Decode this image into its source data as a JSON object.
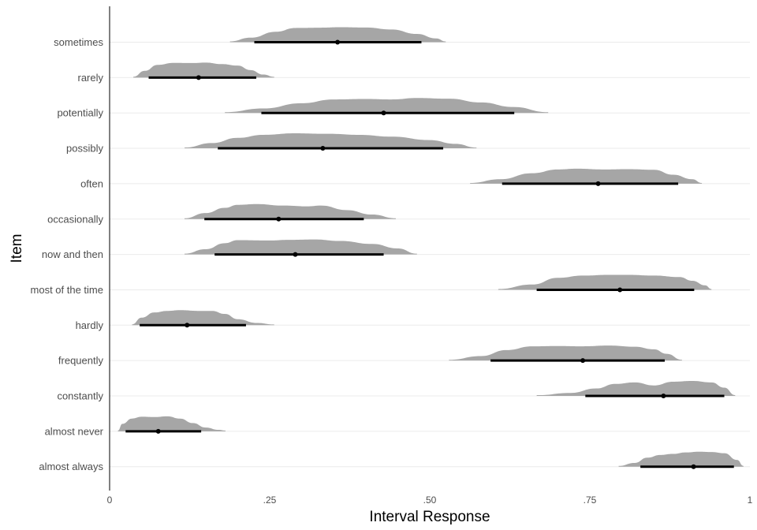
{
  "chart_data": {
    "type": "halfeye",
    "xlabel": "Interval Response",
    "ylabel": "Item",
    "xlim": [
      0,
      1
    ],
    "x_ticks": [
      "0",
      ".25",
      ".50",
      ".75",
      "1"
    ],
    "x_tick_values": [
      0,
      0.25,
      0.5,
      0.75,
      1
    ],
    "grid": "horizontal",
    "colors": {
      "density": "#a6a6a6",
      "interval": "#000000",
      "point": "#000000",
      "grid": "#ebebeb",
      "axis": "#000000"
    },
    "items": [
      {
        "label": "sometimes",
        "point": 0.356,
        "interval": [
          0.226,
          0.487
        ],
        "range": [
          0.188,
          0.525
        ],
        "density": [
          [
            0.188,
            0.05
          ],
          [
            0.22,
            0.3
          ],
          [
            0.26,
            0.7
          ],
          [
            0.29,
            0.95
          ],
          [
            0.33,
            0.97
          ],
          [
            0.36,
            1.0
          ],
          [
            0.4,
            0.98
          ],
          [
            0.44,
            0.85
          ],
          [
            0.48,
            0.55
          ],
          [
            0.51,
            0.25
          ],
          [
            0.525,
            0.05
          ]
        ]
      },
      {
        "label": "rarely",
        "point": 0.139,
        "interval": [
          0.061,
          0.229
        ],
        "range": [
          0.037,
          0.257
        ],
        "density": [
          [
            0.037,
            0.05
          ],
          [
            0.055,
            0.45
          ],
          [
            0.075,
            0.85
          ],
          [
            0.1,
            0.98
          ],
          [
            0.13,
            0.97
          ],
          [
            0.15,
            1.0
          ],
          [
            0.175,
            0.9
          ],
          [
            0.2,
            0.8
          ],
          [
            0.22,
            0.5
          ],
          [
            0.24,
            0.2
          ],
          [
            0.257,
            0.05
          ]
        ]
      },
      {
        "label": "potentially",
        "point": 0.428,
        "interval": [
          0.237,
          0.632
        ],
        "range": [
          0.18,
          0.685
        ],
        "density": [
          [
            0.18,
            0.05
          ],
          [
            0.24,
            0.3
          ],
          [
            0.3,
            0.65
          ],
          [
            0.35,
            0.9
          ],
          [
            0.4,
            0.93
          ],
          [
            0.44,
            0.9
          ],
          [
            0.48,
            1.0
          ],
          [
            0.53,
            0.95
          ],
          [
            0.58,
            0.7
          ],
          [
            0.63,
            0.4
          ],
          [
            0.685,
            0.05
          ]
        ]
      },
      {
        "label": "possibly",
        "point": 0.333,
        "interval": [
          0.169,
          0.521
        ],
        "range": [
          0.117,
          0.573
        ],
        "density": [
          [
            0.117,
            0.05
          ],
          [
            0.16,
            0.35
          ],
          [
            0.2,
            0.7
          ],
          [
            0.24,
            0.9
          ],
          [
            0.29,
            1.0
          ],
          [
            0.34,
            0.97
          ],
          [
            0.39,
            0.9
          ],
          [
            0.44,
            0.78
          ],
          [
            0.5,
            0.55
          ],
          [
            0.54,
            0.3
          ],
          [
            0.573,
            0.05
          ]
        ]
      },
      {
        "label": "often",
        "point": 0.763,
        "interval": [
          0.613,
          0.888
        ],
        "range": [
          0.563,
          0.925
        ],
        "density": [
          [
            0.563,
            0.05
          ],
          [
            0.61,
            0.3
          ],
          [
            0.66,
            0.7
          ],
          [
            0.7,
            0.95
          ],
          [
            0.73,
            1.0
          ],
          [
            0.77,
            0.95
          ],
          [
            0.81,
            0.97
          ],
          [
            0.85,
            0.93
          ],
          [
            0.88,
            0.6
          ],
          [
            0.91,
            0.3
          ],
          [
            0.925,
            0.05
          ]
        ]
      },
      {
        "label": "occasionally",
        "point": 0.264,
        "interval": [
          0.148,
          0.397
        ],
        "range": [
          0.117,
          0.447
        ],
        "density": [
          [
            0.117,
            0.05
          ],
          [
            0.15,
            0.4
          ],
          [
            0.18,
            0.75
          ],
          [
            0.2,
            0.95
          ],
          [
            0.23,
            1.0
          ],
          [
            0.27,
            0.9
          ],
          [
            0.31,
            0.85
          ],
          [
            0.33,
            0.9
          ],
          [
            0.37,
            0.6
          ],
          [
            0.41,
            0.3
          ],
          [
            0.447,
            0.05
          ]
        ]
      },
      {
        "label": "now and then",
        "point": 0.29,
        "interval": [
          0.164,
          0.428
        ],
        "range": [
          0.117,
          0.48
        ],
        "density": [
          [
            0.117,
            0.05
          ],
          [
            0.15,
            0.35
          ],
          [
            0.18,
            0.75
          ],
          [
            0.2,
            0.95
          ],
          [
            0.25,
            0.93
          ],
          [
            0.28,
            0.97
          ],
          [
            0.32,
            1.0
          ],
          [
            0.36,
            0.9
          ],
          [
            0.41,
            0.7
          ],
          [
            0.45,
            0.4
          ],
          [
            0.48,
            0.05
          ]
        ]
      },
      {
        "label": "most of the time",
        "point": 0.797,
        "interval": [
          0.667,
          0.913
        ],
        "range": [
          0.607,
          0.94
        ],
        "density": [
          [
            0.607,
            0.05
          ],
          [
            0.66,
            0.35
          ],
          [
            0.7,
            0.8
          ],
          [
            0.74,
            0.95
          ],
          [
            0.78,
            1.0
          ],
          [
            0.81,
            1.0
          ],
          [
            0.85,
            0.95
          ],
          [
            0.89,
            0.85
          ],
          [
            0.91,
            0.6
          ],
          [
            0.93,
            0.3
          ],
          [
            0.94,
            0.05
          ]
        ]
      },
      {
        "label": "hardly",
        "point": 0.121,
        "interval": [
          0.047,
          0.213
        ],
        "range": [
          0.035,
          0.257
        ],
        "density": [
          [
            0.035,
            0.05
          ],
          [
            0.05,
            0.5
          ],
          [
            0.07,
            0.85
          ],
          [
            0.09,
            0.95
          ],
          [
            0.11,
            1.0
          ],
          [
            0.14,
            0.95
          ],
          [
            0.16,
            0.95
          ],
          [
            0.18,
            0.75
          ],
          [
            0.2,
            0.4
          ],
          [
            0.23,
            0.15
          ],
          [
            0.257,
            0.05
          ]
        ]
      },
      {
        "label": "frequently",
        "point": 0.739,
        "interval": [
          0.595,
          0.867
        ],
        "range": [
          0.53,
          0.894
        ],
        "density": [
          [
            0.53,
            0.05
          ],
          [
            0.58,
            0.3
          ],
          [
            0.62,
            0.7
          ],
          [
            0.66,
            0.95
          ],
          [
            0.7,
            0.97
          ],
          [
            0.74,
            0.95
          ],
          [
            0.78,
            1.0
          ],
          [
            0.82,
            0.92
          ],
          [
            0.85,
            0.75
          ],
          [
            0.87,
            0.45
          ],
          [
            0.894,
            0.05
          ]
        ]
      },
      {
        "label": "constantly",
        "point": 0.865,
        "interval": [
          0.743,
          0.96
        ],
        "range": [
          0.667,
          0.977
        ],
        "density": [
          [
            0.667,
            0.05
          ],
          [
            0.72,
            0.2
          ],
          [
            0.76,
            0.5
          ],
          [
            0.79,
            0.8
          ],
          [
            0.82,
            0.9
          ],
          [
            0.85,
            0.7
          ],
          [
            0.88,
            0.95
          ],
          [
            0.91,
            1.0
          ],
          [
            0.94,
            0.9
          ],
          [
            0.96,
            0.55
          ],
          [
            0.977,
            0.05
          ]
        ]
      },
      {
        "label": "almost never",
        "point": 0.076,
        "interval": [
          0.025,
          0.143
        ],
        "range": [
          0.013,
          0.181
        ],
        "density": [
          [
            0.013,
            0.05
          ],
          [
            0.02,
            0.5
          ],
          [
            0.035,
            0.85
          ],
          [
            0.05,
            0.97
          ],
          [
            0.07,
            0.95
          ],
          [
            0.09,
            1.0
          ],
          [
            0.11,
            0.85
          ],
          [
            0.13,
            0.55
          ],
          [
            0.15,
            0.25
          ],
          [
            0.17,
            0.1
          ],
          [
            0.181,
            0.05
          ]
        ]
      },
      {
        "label": "almost always",
        "point": 0.912,
        "interval": [
          0.829,
          0.975
        ],
        "range": [
          0.795,
          0.99
        ],
        "density": [
          [
            0.795,
            0.05
          ],
          [
            0.82,
            0.25
          ],
          [
            0.84,
            0.6
          ],
          [
            0.86,
            0.78
          ],
          [
            0.88,
            0.85
          ],
          [
            0.9,
            0.95
          ],
          [
            0.92,
            1.0
          ],
          [
            0.94,
            0.98
          ],
          [
            0.96,
            0.9
          ],
          [
            0.98,
            0.45
          ],
          [
            0.99,
            0.05
          ]
        ]
      }
    ]
  }
}
